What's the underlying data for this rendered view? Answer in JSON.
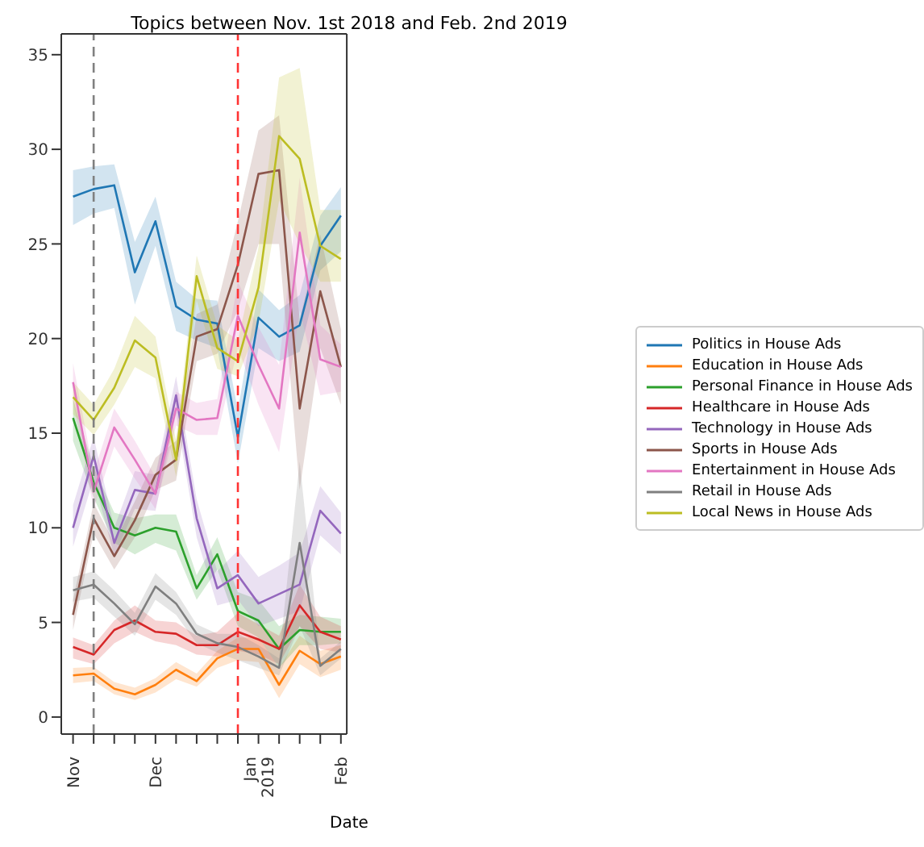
{
  "chart_data": {
    "type": "line",
    "title": "Topics between Nov. 1st 2018 and Feb. 2nd 2019",
    "xlabel": "Date",
    "x": [
      "2018-11-04",
      "2018-11-11",
      "2018-11-18",
      "2018-11-25",
      "2018-12-02",
      "2018-12-09",
      "2018-12-16",
      "2018-12-23",
      "2018-12-30",
      "2019-01-06",
      "2019-01-13",
      "2019-01-20",
      "2019-01-27",
      "2019-02-03"
    ],
    "xlim": [
      "2018-10-31",
      "2019-02-05"
    ],
    "xticks": [
      {
        "value": "2018-11-04",
        "label": "Nov"
      },
      {
        "value": "2018-11-11",
        "label": null
      },
      {
        "value": "2018-11-18",
        "label": null
      },
      {
        "value": "2018-11-25",
        "label": null
      },
      {
        "value": "2018-12-02",
        "label": "Dec"
      },
      {
        "value": "2018-12-09",
        "label": null
      },
      {
        "value": "2018-12-16",
        "label": null
      },
      {
        "value": "2018-12-23",
        "label": null
      },
      {
        "value": "2018-12-30",
        "label": null
      },
      {
        "value": "2019-01-06",
        "label": "Jan\n2019"
      },
      {
        "value": "2019-01-13",
        "label": null
      },
      {
        "value": "2019-01-20",
        "label": null
      },
      {
        "value": "2019-01-27",
        "label": null
      },
      {
        "value": "2019-02-03",
        "label": "Feb"
      }
    ],
    "ylim": [
      -0.9,
      36.1
    ],
    "yticks": [
      0,
      5,
      10,
      15,
      20,
      25,
      30,
      35
    ],
    "legend": "right",
    "series": [
      {
        "name": "Politics in House Ads",
        "color": "#1f77b4",
        "values": [
          27.5,
          27.9,
          28.1,
          23.5,
          26.2,
          21.7,
          21.0,
          20.8,
          14.8,
          21.1,
          20.1,
          20.7,
          24.9,
          26.5
        ],
        "lower": [
          26.0,
          26.6,
          26.9,
          21.8,
          24.9,
          20.4,
          19.9,
          19.5,
          13.4,
          19.5,
          18.8,
          19.3,
          23.6,
          24.6
        ],
        "upper": [
          28.9,
          29.1,
          29.2,
          25.1,
          27.5,
          23.0,
          22.1,
          22.0,
          16.2,
          22.6,
          21.5,
          22.3,
          26.5,
          28.0
        ]
      },
      {
        "name": "Education in House Ads",
        "color": "#ff7f0e",
        "values": [
          2.2,
          2.3,
          1.5,
          1.2,
          1.7,
          2.5,
          1.9,
          3.1,
          3.6,
          3.6,
          1.7,
          3.5,
          2.8,
          3.2
        ],
        "lower": [
          1.8,
          1.9,
          1.2,
          0.9,
          1.3,
          2.0,
          1.6,
          2.6,
          3.0,
          2.9,
          1.0,
          2.8,
          2.1,
          2.5
        ],
        "upper": [
          2.6,
          2.65,
          1.85,
          1.55,
          2.05,
          2.9,
          2.3,
          3.5,
          4.2,
          4.2,
          2.6,
          4.3,
          3.5,
          3.8
        ]
      },
      {
        "name": "Personal Finance in House Ads",
        "color": "#2ca02c",
        "values": [
          15.8,
          12.4,
          10.0,
          9.6,
          10.0,
          9.8,
          6.8,
          8.6,
          5.6,
          5.1,
          3.6,
          4.6,
          4.5,
          4.5
        ],
        "lower": [
          14.6,
          11.6,
          9.2,
          8.6,
          9.2,
          8.8,
          6.2,
          7.8,
          4.8,
          4.2,
          2.6,
          3.8,
          3.8,
          3.9
        ],
        "upper": [
          16.8,
          13.2,
          10.8,
          10.5,
          10.7,
          10.7,
          7.5,
          9.5,
          6.6,
          6.2,
          4.8,
          5.4,
          5.3,
          5.2
        ]
      },
      {
        "name": "Healthcare in House Ads",
        "color": "#d62728",
        "values": [
          3.7,
          3.3,
          4.6,
          5.1,
          4.5,
          4.4,
          3.8,
          3.8,
          4.5,
          4.1,
          3.6,
          5.9,
          4.5,
          4.1
        ],
        "lower": [
          3.1,
          2.8,
          3.9,
          4.5,
          4.0,
          3.8,
          3.3,
          3.2,
          3.5,
          3.3,
          2.8,
          4.8,
          3.6,
          3.4
        ],
        "upper": [
          4.2,
          3.8,
          5.1,
          5.9,
          5.1,
          5.0,
          4.3,
          4.5,
          5.5,
          4.9,
          4.3,
          7.0,
          5.3,
          4.8
        ]
      },
      {
        "name": "Technology in House Ads",
        "color": "#9467bd",
        "values": [
          10.0,
          13.8,
          9.2,
          12.0,
          11.8,
          17.0,
          10.5,
          6.8,
          7.5,
          6.0,
          6.5,
          7.0,
          10.9,
          9.7
        ],
        "lower": [
          9.0,
          12.6,
          8.5,
          11.0,
          10.9,
          16.0,
          9.5,
          5.9,
          6.2,
          4.8,
          5.2,
          5.6,
          9.6,
          8.6
        ],
        "upper": [
          11.2,
          14.8,
          10.0,
          13.0,
          12.8,
          18.0,
          11.5,
          7.7,
          8.8,
          7.4,
          8.0,
          8.7,
          12.2,
          10.8
        ]
      },
      {
        "name": "Sports in House Ads",
        "color": "#8c564b",
        "values": [
          5.4,
          10.5,
          8.5,
          10.4,
          12.8,
          13.6,
          20.1,
          20.5,
          23.9,
          28.7,
          28.9,
          16.3,
          22.5,
          18.5
        ],
        "lower": [
          4.6,
          9.7,
          7.8,
          9.5,
          12.0,
          12.5,
          18.8,
          19.2,
          21.5,
          25.0,
          25.0,
          12.0,
          19.5,
          16.5
        ],
        "upper": [
          6.2,
          11.3,
          9.2,
          11.4,
          13.7,
          14.6,
          21.3,
          21.8,
          26.2,
          31.0,
          31.8,
          21.0,
          25.5,
          20.5
        ]
      },
      {
        "name": "Entertainment in House Ads",
        "color": "#e377c2",
        "values": [
          17.7,
          11.9,
          15.3,
          13.6,
          11.8,
          16.3,
          15.7,
          15.8,
          21.2,
          18.6,
          16.3,
          25.6,
          18.9,
          18.5
        ],
        "lower": [
          16.7,
          11.0,
          14.3,
          12.6,
          11.0,
          15.4,
          14.9,
          14.9,
          19.5,
          16.5,
          14.0,
          21.5,
          17.0,
          17.2
        ],
        "upper": [
          18.7,
          12.9,
          16.3,
          14.6,
          12.7,
          17.2,
          16.6,
          16.8,
          23.0,
          20.6,
          18.6,
          28.5,
          20.7,
          19.7
        ]
      },
      {
        "name": "Retail in House Ads",
        "color": "#7f7f7f",
        "values": [
          6.7,
          7.0,
          6.0,
          4.9,
          6.9,
          6.0,
          4.4,
          3.9,
          3.7,
          3.2,
          2.6,
          9.2,
          2.7,
          3.6
        ],
        "lower": [
          6.1,
          6.3,
          5.3,
          4.3,
          6.2,
          5.4,
          3.9,
          3.4,
          3.0,
          2.6,
          2.2,
          4.8,
          2.2,
          3.1
        ],
        "upper": [
          7.4,
          7.7,
          6.7,
          5.5,
          7.6,
          6.6,
          4.9,
          4.4,
          4.4,
          3.8,
          3.1,
          13.5,
          3.1,
          4.0
        ]
      },
      {
        "name": "Local News in House Ads",
        "color": "#bcbd22",
        "values": [
          16.9,
          15.7,
          17.4,
          19.9,
          19.0,
          13.6,
          23.3,
          19.5,
          18.8,
          22.7,
          30.7,
          29.5,
          24.9,
          24.2
        ],
        "lower": [
          16.0,
          14.9,
          16.5,
          18.5,
          17.9,
          12.7,
          22.0,
          18.4,
          18.0,
          20.8,
          27.3,
          25.0,
          23.0,
          23.0
        ],
        "upper": [
          17.7,
          16.5,
          18.4,
          21.2,
          20.1,
          14.6,
          24.4,
          20.7,
          19.9,
          24.8,
          33.8,
          34.3,
          26.8,
          26.8
        ]
      }
    ],
    "ref_lines": [
      {
        "axis": "x",
        "value": "2018-11-11",
        "color": "#808080",
        "line_style": "dashed"
      },
      {
        "axis": "x",
        "value": "2018-12-30",
        "color": "#ff3333",
        "line_style": "dashed"
      }
    ]
  }
}
